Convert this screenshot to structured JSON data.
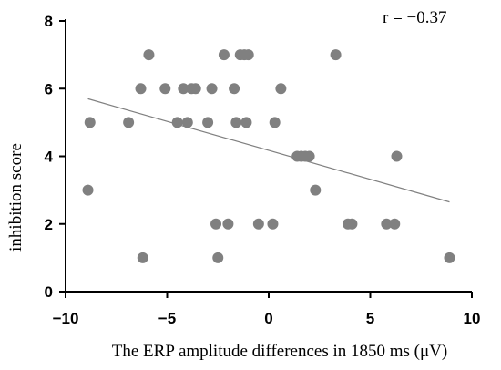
{
  "chart_data": {
    "type": "scatter",
    "xlabel": "The ERP amplitude differences in 1850 ms (μV)",
    "ylabel": "inhibition score",
    "xlim": [
      -10,
      10
    ],
    "ylim": [
      0,
      8
    ],
    "xticks": [
      -10,
      -5,
      0,
      5,
      10
    ],
    "yticks": [
      0,
      2,
      4,
      6,
      8
    ],
    "xtick_labels": [
      "−10",
      "−5",
      "0",
      "5",
      "10"
    ],
    "ytick_labels": [
      "0",
      "2",
      "4",
      "6",
      "8"
    ],
    "grid": false,
    "annotation": "r = −0.37",
    "point_color": "#808080",
    "trend_line": {
      "x": [
        -8.9,
        8.9
      ],
      "y": [
        5.7,
        2.65
      ]
    },
    "points": [
      {
        "x": -8.9,
        "y": 3
      },
      {
        "x": -8.8,
        "y": 5
      },
      {
        "x": -6.9,
        "y": 5
      },
      {
        "x": -6.3,
        "y": 6
      },
      {
        "x": -6.2,
        "y": 1
      },
      {
        "x": -5.9,
        "y": 7
      },
      {
        "x": -5.1,
        "y": 6
      },
      {
        "x": -4.5,
        "y": 5
      },
      {
        "x": -4.2,
        "y": 6
      },
      {
        "x": -4.0,
        "y": 5
      },
      {
        "x": -3.8,
        "y": 6
      },
      {
        "x": -3.6,
        "y": 6
      },
      {
        "x": -3.0,
        "y": 5
      },
      {
        "x": -2.8,
        "y": 6
      },
      {
        "x": -2.6,
        "y": 2
      },
      {
        "x": -2.5,
        "y": 1
      },
      {
        "x": -2.2,
        "y": 7
      },
      {
        "x": -2.0,
        "y": 2
      },
      {
        "x": -1.7,
        "y": 6
      },
      {
        "x": -1.6,
        "y": 5
      },
      {
        "x": -1.4,
        "y": 7
      },
      {
        "x": -1.2,
        "y": 7
      },
      {
        "x": -1.1,
        "y": 5
      },
      {
        "x": -1.0,
        "y": 7
      },
      {
        "x": -0.5,
        "y": 2
      },
      {
        "x": 0.2,
        "y": 2
      },
      {
        "x": 0.3,
        "y": 5
      },
      {
        "x": 0.6,
        "y": 6
      },
      {
        "x": 1.4,
        "y": 4
      },
      {
        "x": 1.6,
        "y": 4
      },
      {
        "x": 1.8,
        "y": 4
      },
      {
        "x": 2.0,
        "y": 4
      },
      {
        "x": 2.3,
        "y": 3
      },
      {
        "x": 3.3,
        "y": 7
      },
      {
        "x": 3.9,
        "y": 2
      },
      {
        "x": 4.1,
        "y": 2
      },
      {
        "x": 5.8,
        "y": 2
      },
      {
        "x": 6.2,
        "y": 2
      },
      {
        "x": 6.3,
        "y": 4
      },
      {
        "x": 8.9,
        "y": 1
      }
    ]
  }
}
